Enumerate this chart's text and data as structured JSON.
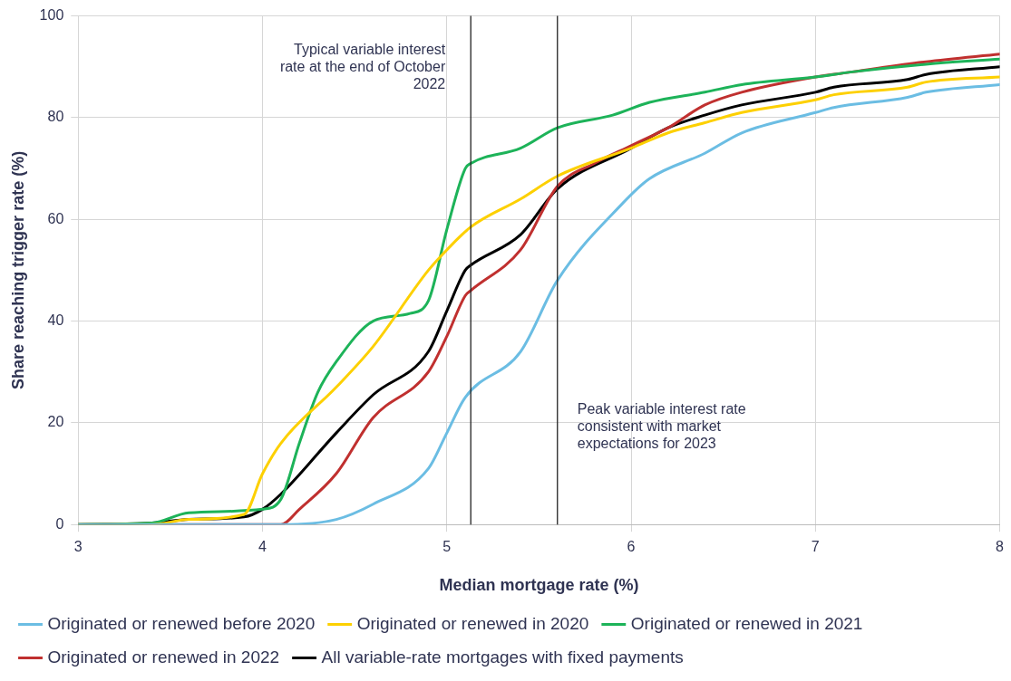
{
  "chart_data": {
    "type": "line",
    "xlabel": "Median mortgage rate (%)",
    "ylabel": "Share reaching trigger rate (%)",
    "xlim": [
      3,
      8
    ],
    "xticks": [
      3,
      4,
      5,
      6,
      7,
      8
    ],
    "ylim": [
      0,
      100
    ],
    "yticks": [
      0,
      20,
      40,
      60,
      80,
      100
    ],
    "grid": true,
    "legend": "bottom",
    "marker": "none",
    "line_style": "solid",
    "ref_lines": [
      {
        "axis": "x",
        "value": 5.13,
        "label": "Typical variable interest rate at the end of October 2022",
        "color": "#222222"
      },
      {
        "axis": "x",
        "value": 5.6,
        "label": "Peak variable interest rate consistent with market expectations for 2023",
        "color": "#222222"
      }
    ],
    "series": [
      {
        "name": "Originated or renewed before 2020",
        "color": "#6bbde3",
        "x": [
          3,
          4.1,
          4.4,
          4.6,
          4.9,
          5.0,
          5.1,
          5.4,
          5.6,
          5.95,
          6.1,
          6.4,
          6.6,
          7.0,
          7.1,
          7.5,
          7.6,
          8
        ],
        "values": [
          0,
          0,
          1,
          4,
          11,
          18,
          25,
          34,
          48,
          63,
          68,
          73,
          77,
          81,
          82,
          84,
          85,
          86.5
        ]
      },
      {
        "name": "Originated or renewed in 2020",
        "color": "#fdd000",
        "x": [
          3,
          3.4,
          3.6,
          3.9,
          4.0,
          4.1,
          4.4,
          4.6,
          4.9,
          5.0,
          5.13,
          5.4,
          5.6,
          6.0,
          6.2,
          6.4,
          6.6,
          7.0,
          7.1,
          7.5,
          7.6,
          8
        ],
        "values": [
          0,
          0,
          1,
          2,
          10,
          16,
          27,
          35,
          50,
          54,
          58.5,
          64,
          68.5,
          74,
          77,
          79,
          81,
          83.5,
          84.5,
          86,
          87,
          88
        ]
      },
      {
        "name": "Originated or renewed in 2021",
        "color": "#1db359",
        "x": [
          3,
          3.4,
          3.6,
          4.0,
          4.1,
          4.2,
          4.3,
          4.4,
          4.6,
          4.8,
          4.9,
          5.0,
          5.1,
          5.13,
          5.4,
          5.6,
          5.9,
          6.1,
          6.4,
          6.6,
          7.0,
          7.2,
          7.6,
          8
        ],
        "values": [
          0,
          0.3,
          2.3,
          3,
          5,
          16,
          26,
          32,
          40,
          41.5,
          44,
          58,
          70,
          71,
          74,
          78,
          80.5,
          83,
          85,
          86.5,
          88,
          89,
          90.5,
          91.5
        ]
      },
      {
        "name": "Originated or renewed in 2022",
        "color": "#c0302f",
        "x": [
          3,
          4.1,
          4.2,
          4.4,
          4.6,
          4.9,
          5.0,
          5.1,
          5.13,
          5.4,
          5.6,
          5.8,
          6.0,
          6.2,
          6.4,
          6.6,
          7.0,
          7.2,
          7.6,
          8
        ],
        "values": [
          0,
          0,
          3,
          10,
          21,
          30,
          37,
          45,
          46,
          54,
          66.5,
          71,
          74.5,
          78,
          82.5,
          85,
          88,
          89,
          91,
          92.5
        ]
      },
      {
        "name": "All variable-rate mortgages with fixed payments",
        "color": "#000000",
        "x": [
          3,
          3.4,
          3.6,
          3.9,
          4.0,
          4.1,
          4.4,
          4.6,
          4.9,
          5.0,
          5.1,
          5.13,
          5.4,
          5.6,
          6.0,
          6.2,
          6.4,
          6.6,
          7.0,
          7.1,
          7.5,
          7.6,
          8
        ],
        "values": [
          0,
          0.3,
          1,
          1.5,
          3,
          6,
          18,
          25.5,
          34,
          42,
          50,
          51,
          57,
          66,
          74,
          78,
          80.5,
          82.5,
          85,
          86,
          87.5,
          88.5,
          90
        ]
      }
    ]
  }
}
